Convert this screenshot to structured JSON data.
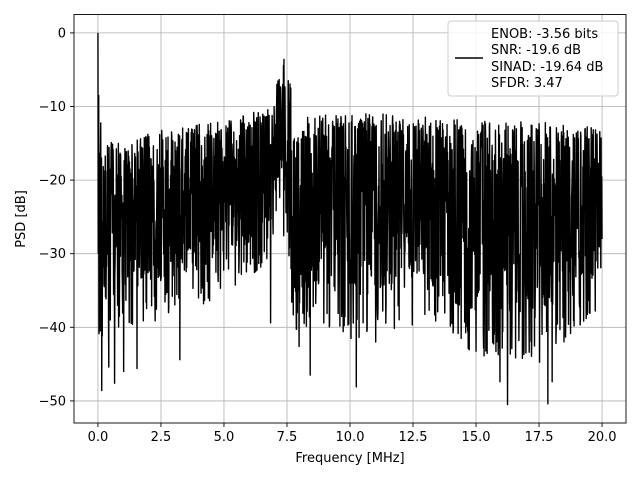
{
  "chart_data": {
    "type": "line",
    "title": "",
    "xlabel": "Frequency [MHz]",
    "ylabel": "PSD [dB]",
    "xlim": [
      -0.95,
      20.95
    ],
    "ylim": [
      -53,
      2.5
    ],
    "xticks": [
      0.0,
      2.5,
      5.0,
      7.5,
      10.0,
      12.5,
      15.0,
      17.5,
      20.0
    ],
    "xtick_labels": [
      "0.0",
      "2.5",
      "5.0",
      "7.5",
      "10.0",
      "12.5",
      "15.0",
      "17.5",
      "20.0"
    ],
    "yticks": [
      0,
      -10,
      -20,
      -30,
      -40,
      -50
    ],
    "ytick_labels": [
      "0",
      "−10",
      "−20",
      "−30",
      "−40",
      "−50"
    ],
    "grid": true,
    "legend_placement": "top-right",
    "legend_entries": [
      "ENOB: -3.56 bits",
      "SNR: -19.6 dB",
      "SINAD: -19.64 dB",
      "SFDR: 3.47"
    ],
    "line_color": "#000000",
    "series": [
      {
        "x_range": [
          0,
          20
        ],
        "step": 0.01,
        "envelope": {
          "knots": [
            0,
            0.2,
            1,
            2.5,
            5,
            6.8,
            7.3,
            7.6,
            7.75,
            8.5,
            10,
            12.5,
            15,
            17.5,
            20
          ],
          "upper": [
            -8,
            -14,
            -15,
            -13,
            -12,
            -10,
            -4,
            -6,
            -13,
            -11,
            -11,
            -11,
            -12,
            -12,
            -13
          ],
          "lower": [
            -45,
            -42,
            -40,
            -39,
            -36,
            -31,
            -28,
            -31,
            -41,
            -40,
            -42,
            -40,
            -44,
            -45,
            -38
          ]
        },
        "peak": {
          "x": 0.0,
          "y": 0.0
        },
        "points": [
          {
            "x": 0.03,
            "y": -8.5
          },
          {
            "x": 0.06,
            "y": -17.0
          },
          {
            "x": 0.15,
            "y": -48.6
          },
          {
            "x": 0.43,
            "y": -45.4
          },
          {
            "x": 0.66,
            "y": -47.6
          },
          {
            "x": 1.02,
            "y": -46.0
          },
          {
            "x": 1.55,
            "y": -45.6
          },
          {
            "x": 3.25,
            "y": -44.4
          },
          {
            "x": 6.85,
            "y": -39.4
          },
          {
            "x": 7.38,
            "y": -3.6
          },
          {
            "x": 7.55,
            "y": -6.5
          },
          {
            "x": 7.65,
            "y": -7.5
          },
          {
            "x": 7.98,
            "y": -42.6
          },
          {
            "x": 8.42,
            "y": -46.5
          },
          {
            "x": 10.25,
            "y": -48.1
          },
          {
            "x": 11.02,
            "y": -42.0
          },
          {
            "x": 15.95,
            "y": -47.4
          },
          {
            "x": 16.25,
            "y": -50.5
          },
          {
            "x": 17.85,
            "y": -50.4
          },
          {
            "x": 18.02,
            "y": -47.4
          },
          {
            "x": 19.5,
            "y": -38.0
          },
          {
            "x": 20.0,
            "y": -28.0
          }
        ]
      }
    ]
  }
}
